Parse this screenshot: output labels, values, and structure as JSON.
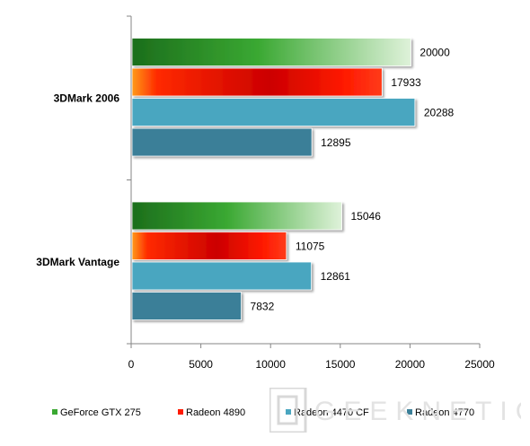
{
  "chart_data": {
    "type": "bar",
    "orientation": "horizontal",
    "categories": [
      "3DMark 2006",
      "3DMark Vantage"
    ],
    "series": [
      {
        "name": "GeForce GTX 275",
        "values": [
          20000,
          15046
        ]
      },
      {
        "name": "Radeon 4890",
        "values": [
          17933,
          11075
        ]
      },
      {
        "name": "Radeon 4470 CF",
        "values": [
          20288,
          12861
        ]
      },
      {
        "name": "Radeon 4770",
        "values": [
          12895,
          7832
        ]
      }
    ],
    "xlim": [
      0,
      25000
    ],
    "x_ticks": [
      "0",
      "5000",
      "10000",
      "15000",
      "20000",
      "25000"
    ],
    "grid": false,
    "legend_position": "bottom"
  },
  "colors": {
    "geforce_dark": "#1c6e1c",
    "geforce_mid": "#3aa832",
    "geforce_light": "#d9efd3",
    "radeon4890_edge": "#ff8c1a",
    "radeon4890_main": "#ff1a00",
    "radeon4890_dark": "#c80000",
    "radeon4470": "#4aa6c0",
    "radeon4770": "#3a7f98"
  },
  "watermark": "GEEKNETIC"
}
